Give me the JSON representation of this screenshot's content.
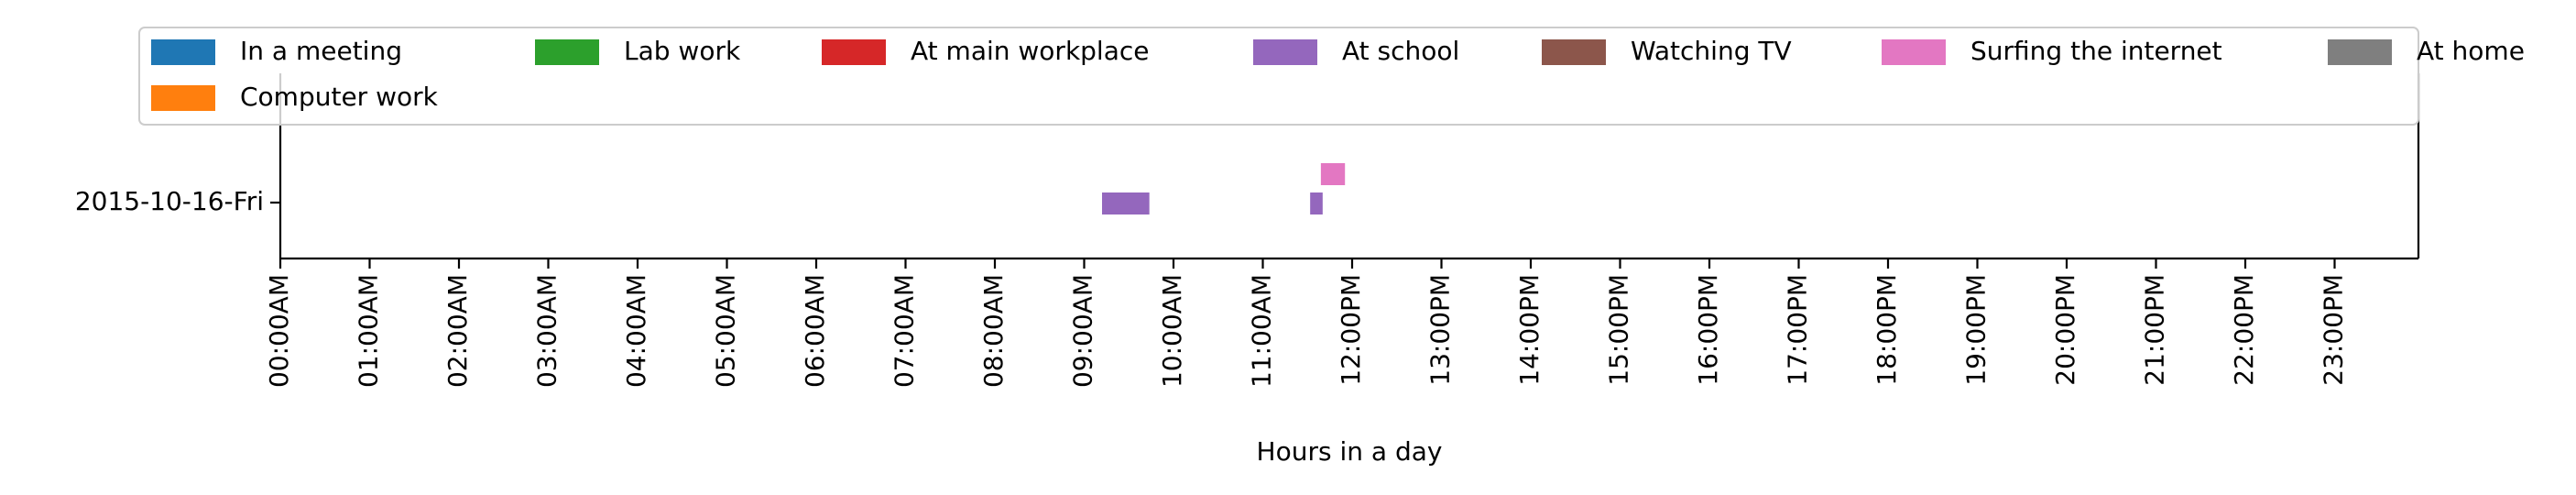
{
  "chart_data": {
    "type": "timeline",
    "xlabel": "Hours in a day",
    "ylabel": "",
    "xlim": [
      0,
      24
    ],
    "legend_position": "top",
    "legend": [
      {
        "name": "In a meeting",
        "color": "#1f77b4"
      },
      {
        "name": "Computer work",
        "color": "#ff7f0e"
      },
      {
        "name": "Lab work",
        "color": "#2ca02c"
      },
      {
        "name": "At main workplace",
        "color": "#d62728"
      },
      {
        "name": "At school",
        "color": "#9467bd"
      },
      {
        "name": "Watching TV",
        "color": "#8c564b"
      },
      {
        "name": "Surfing the internet",
        "color": "#e377c2"
      },
      {
        "name": "At home",
        "color": "#7f7f7f"
      }
    ],
    "categories": [
      "2015-10-16-Fri"
    ],
    "x_tick_labels": [
      "00:00AM",
      "01:00AM",
      "02:00AM",
      "03:00AM",
      "04:00AM",
      "05:00AM",
      "06:00AM",
      "07:00AM",
      "08:00AM",
      "09:00AM",
      "10:00AM",
      "11:00AM",
      "12:00PM",
      "13:00PM",
      "14:00PM",
      "15:00PM",
      "16:00PM",
      "17:00PM",
      "18:00PM",
      "19:00PM",
      "20:00PM",
      "21:00PM",
      "22:00PM",
      "23:00PM"
    ],
    "segments": [
      {
        "day": "2015-10-16-Fri",
        "activity": "At school",
        "start": 9.2,
        "end": 9.73
      },
      {
        "day": "2015-10-16-Fri",
        "activity": "At school",
        "start": 11.53,
        "end": 11.67
      },
      {
        "day": "2015-10-16-Fri",
        "activity": "Surfing the internet",
        "start": 11.65,
        "end": 11.92
      }
    ]
  }
}
